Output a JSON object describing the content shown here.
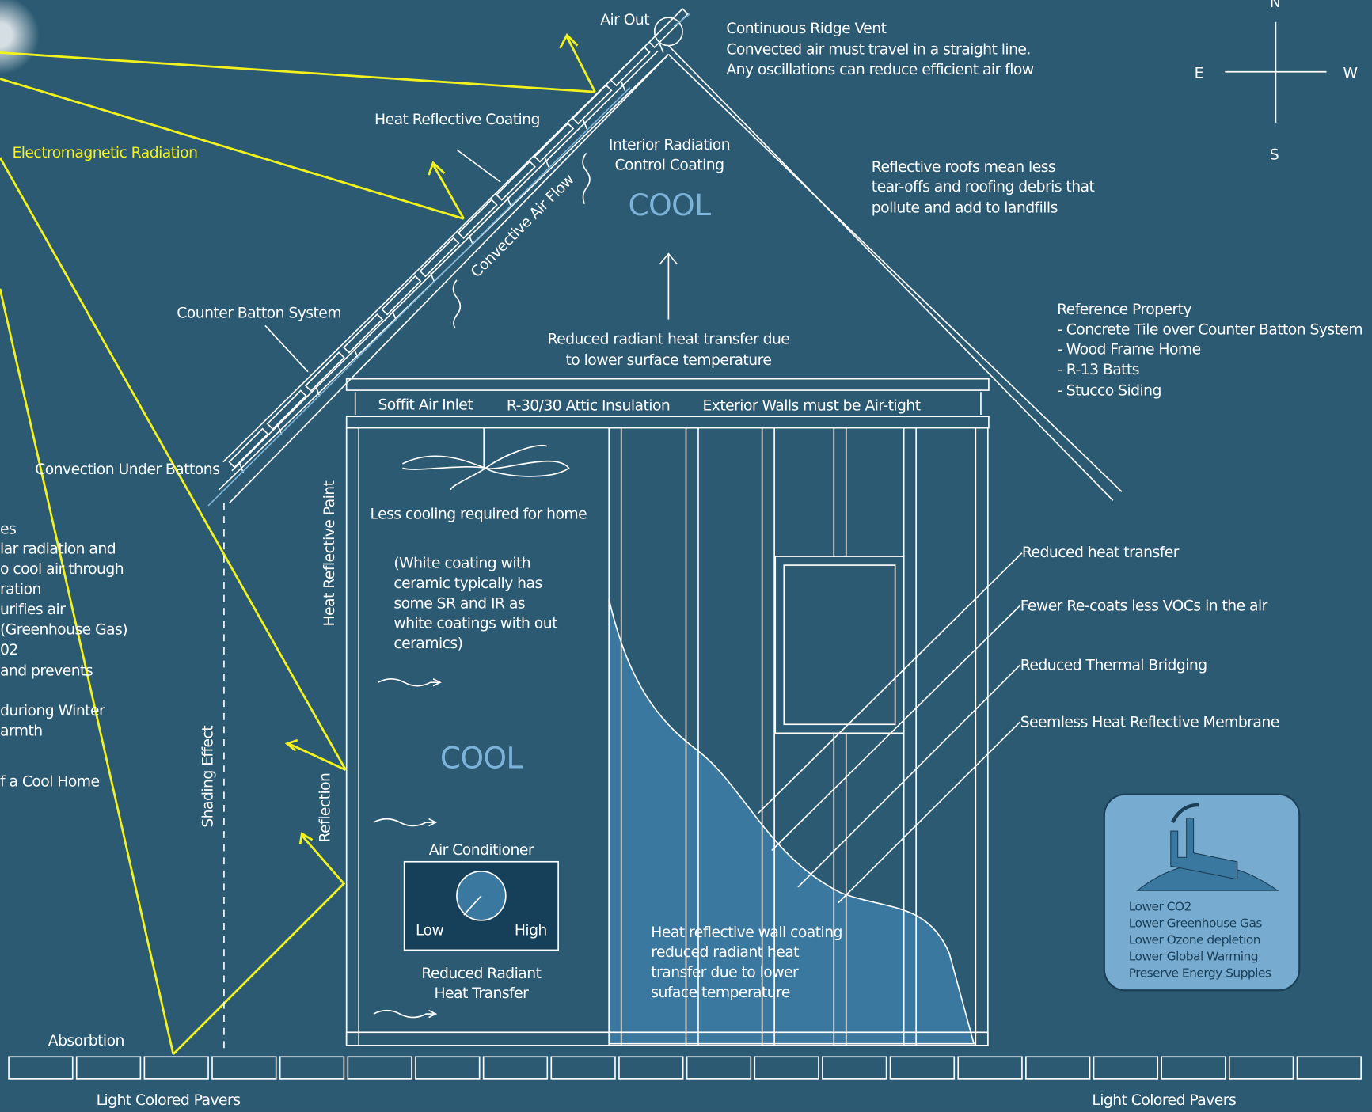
{
  "vent": {
    "air_out": "Air Out",
    "title": "Continuous Ridge Vent",
    "lines": [
      "Convected air must travel in a straight line.",
      "Any oscillations can reduce efficient air flow"
    ]
  },
  "compass": {
    "n": "N",
    "e": "E",
    "w": "W",
    "s": "S"
  },
  "roof": {
    "coating": "Heat Reflective Coating",
    "interior": [
      "Interior Radiation",
      "Control Coating"
    ],
    "attic_cool": "COOL",
    "air_flow": "Convective Air Flow",
    "batton": "Counter Batton System",
    "convection": "Convection Under Battons",
    "radiant": [
      "Reduced radiant heat transfer due",
      "to lower surface temperature"
    ]
  },
  "radiation": "Electromagnetic Radiation",
  "reflective_roofs": [
    "Reflective roofs mean less",
    "tear-offs and roofing debris that",
    "pollute and add to landfills"
  ],
  "reference": {
    "title": "Reference Property",
    "items": [
      "-  Concrete Tile over Counter Batton System",
      "- Wood Frame Home",
      "- R-13 Batts",
      "- Stucco Siding"
    ]
  },
  "attic": {
    "soffit": "Soffit Air Inlet",
    "insulation": "R-30/30 Attic Insulation",
    "walls": "Exterior Walls must be Air-tight"
  },
  "left_notes": [
    "es",
    "lar radiation and",
    "o cool air through",
    "ration",
    "urifies air",
    "(Greenhouse Gas)",
    "02",
    " and prevents",
    " duriong Winter",
    "armth",
    "f a Cool Home"
  ],
  "room": {
    "paint": "Heat Reflective Paint",
    "less_cooling": "Less cooling required for home",
    "white": [
      "(White coating with",
      "ceramic typically has",
      "some SR and IR as",
      "white coatings with out",
      "ceramics)"
    ],
    "cool": "COOL",
    "ac": "Air Conditioner",
    "low": "Low",
    "high": "High",
    "reduced": [
      "Reduced Radiant",
      "Heat Transfer"
    ],
    "wall": [
      "Heat reflective wall coating",
      "reduced radiant heat",
      "transfer due to lower",
      "suface temperature"
    ]
  },
  "callouts": [
    "Reduced heat transfer",
    "Fewer Re-coats less VOCs in the air",
    "Reduced Thermal Bridging",
    "Seemless Heat Reflective Membrane"
  ],
  "ground": {
    "shading": "Shading Effect",
    "reflection": "Reflection",
    "absorbtion": "Absorbtion",
    "pavers_left": "Light Colored Pavers",
    "pavers_right": "Light Colored Pavers"
  },
  "badge": [
    "Lower CO2",
    "Lower Greenhouse Gas",
    "Lower Ozone depletion",
    "Lower Global Warming",
    "Preserve Energy Suppies"
  ]
}
